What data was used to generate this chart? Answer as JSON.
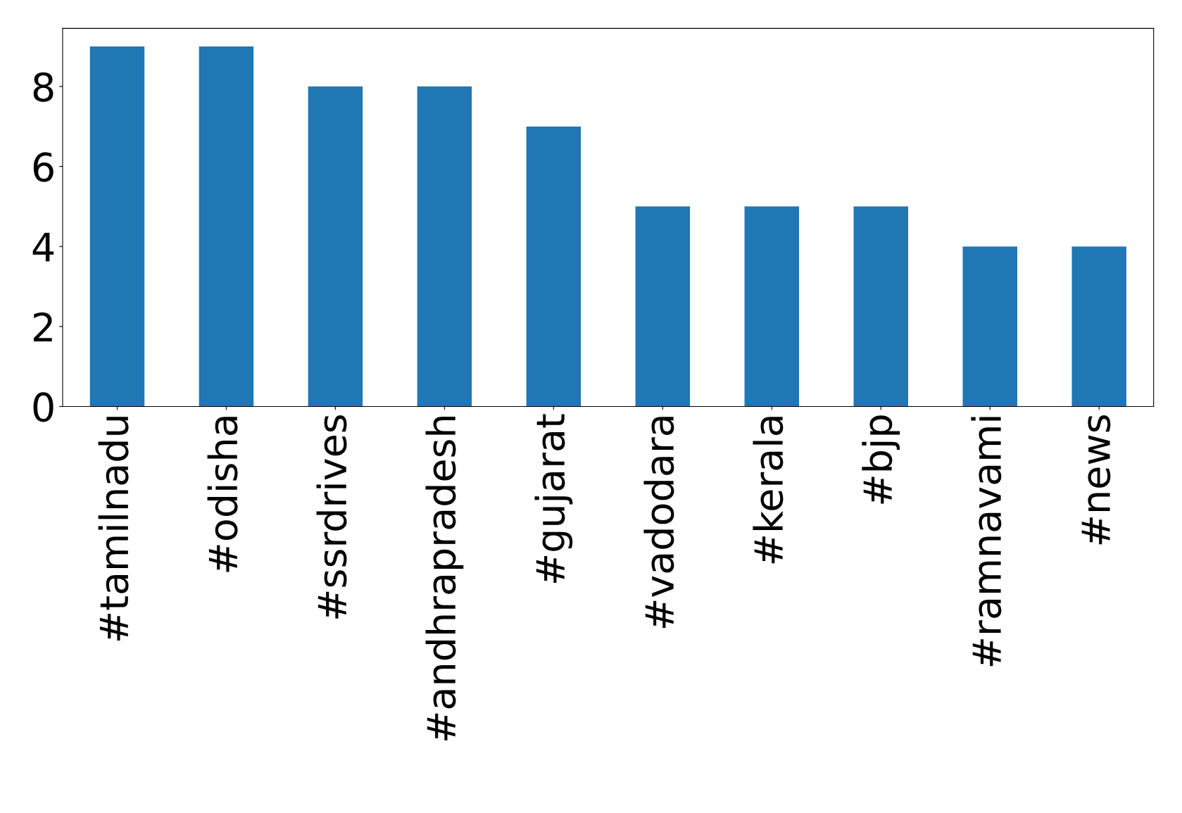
{
  "chart_data": {
    "type": "bar",
    "categories": [
      "#tamilnadu",
      "#odisha",
      "#ssrdrives",
      "#andhrapradesh",
      "#gujarat",
      "#vadodara",
      "#kerala",
      "#bjp",
      "#ramnavami",
      "#news"
    ],
    "values": [
      9,
      9,
      8,
      8,
      7,
      5,
      5,
      5,
      4,
      4
    ],
    "color": "#1f77b4",
    "ylim": [
      0,
      9.45
    ],
    "yticks": [
      0,
      2,
      4,
      6,
      8
    ],
    "grid": false
  }
}
